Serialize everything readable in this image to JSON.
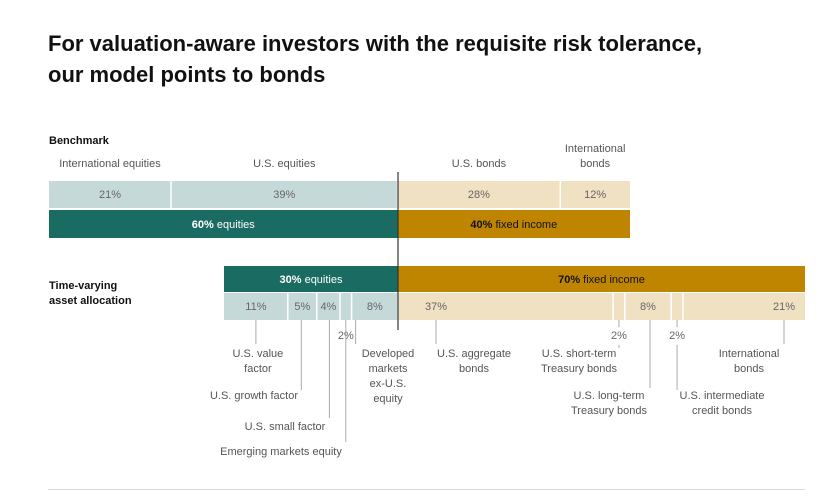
{
  "title_line1": "For valuation-aware investors with the requisite risk tolerance,",
  "title_line2": "our model points to bonds",
  "chart_data": {
    "type": "bar",
    "orientation": "horizontal-stacked",
    "colors": {
      "equity_light": "#c5d9d9",
      "equity_dark": "#1a6b62",
      "fixed_light": "#f0e1c2",
      "fixed_dark": "#c08500",
      "label_gray": "#555555",
      "pct_gray": "#666666",
      "leader": "#aaaaaa"
    },
    "benchmark": {
      "label": "Benchmark",
      "components": [
        {
          "name": "International equities",
          "value": 21,
          "display": "21%",
          "group": "equities"
        },
        {
          "name": "U.S. equities",
          "value": 39,
          "display": "39%",
          "group": "equities"
        },
        {
          "name": "U.S. bonds",
          "value": 28,
          "display": "28%",
          "group": "fixed"
        },
        {
          "name": "International bonds",
          "value": 12,
          "display": "12%",
          "group": "fixed"
        }
      ],
      "totals": [
        {
          "value": 60,
          "pct": "60%",
          "label": " equities",
          "group": "equities"
        },
        {
          "value": 40,
          "pct": "40%",
          "label": " fixed income",
          "group": "fixed"
        }
      ]
    },
    "tvaa": {
      "label_line1": "Time-varying",
      "label_line2": "asset allocation",
      "totals": [
        {
          "value": 30,
          "pct": "30%",
          "label": " equities",
          "group": "equities"
        },
        {
          "value": 70,
          "pct": "70%",
          "label": " fixed income",
          "group": "fixed"
        }
      ],
      "components": [
        {
          "name": "U.S. value factor",
          "value": 11,
          "display": "11%",
          "group": "equities"
        },
        {
          "name": "U.S. growth factor",
          "value": 5,
          "display": "5%",
          "group": "equities"
        },
        {
          "name": "U.S. small factor",
          "value": 4,
          "display": "4%",
          "group": "equities"
        },
        {
          "name": "Emerging markets equity",
          "value": 2,
          "display": "2%",
          "group": "equities"
        },
        {
          "name": "Developed markets ex-U.S. equity",
          "value": 8,
          "display": "8%",
          "group": "equities"
        },
        {
          "name": "U.S. aggregate bonds",
          "value": 37,
          "display": "37%",
          "group": "fixed"
        },
        {
          "name": "U.S. short-term Treasury bonds",
          "value": 2,
          "display": "2%",
          "group": "fixed"
        },
        {
          "name": "U.S. long-term Treasury bonds",
          "value": 8,
          "display": "8%",
          "group": "fixed"
        },
        {
          "name": "U.S. intermediate credit bonds",
          "value": 2,
          "display": "2%",
          "group": "fixed"
        },
        {
          "name": "International bonds",
          "value": 21,
          "display": "21%",
          "group": "fixed"
        }
      ],
      "callout_labels": [
        {
          "component": 0,
          "lines": [
            "U.S. value",
            "factor"
          ]
        },
        {
          "component": 1,
          "lines": [
            "U.S. growth factor"
          ]
        },
        {
          "component": 2,
          "lines": [
            "U.S. small factor"
          ]
        },
        {
          "component": 3,
          "lines": [
            "Emerging markets equity"
          ]
        },
        {
          "component": 4,
          "lines": [
            "Developed",
            "markets",
            "ex-U.S.",
            "equity"
          ]
        },
        {
          "component": 5,
          "lines": [
            "U.S. aggregate",
            "bonds"
          ]
        },
        {
          "component": 6,
          "lines": [
            "U.S. short-term",
            "Treasury bonds"
          ]
        },
        {
          "component": 7,
          "lines": [
            "U.S. long-term",
            "Treasury bonds"
          ]
        },
        {
          "component": 8,
          "lines": [
            "U.S. intermediate",
            "credit bonds"
          ]
        },
        {
          "component": 9,
          "lines": [
            "International",
            "bonds"
          ]
        }
      ]
    }
  }
}
